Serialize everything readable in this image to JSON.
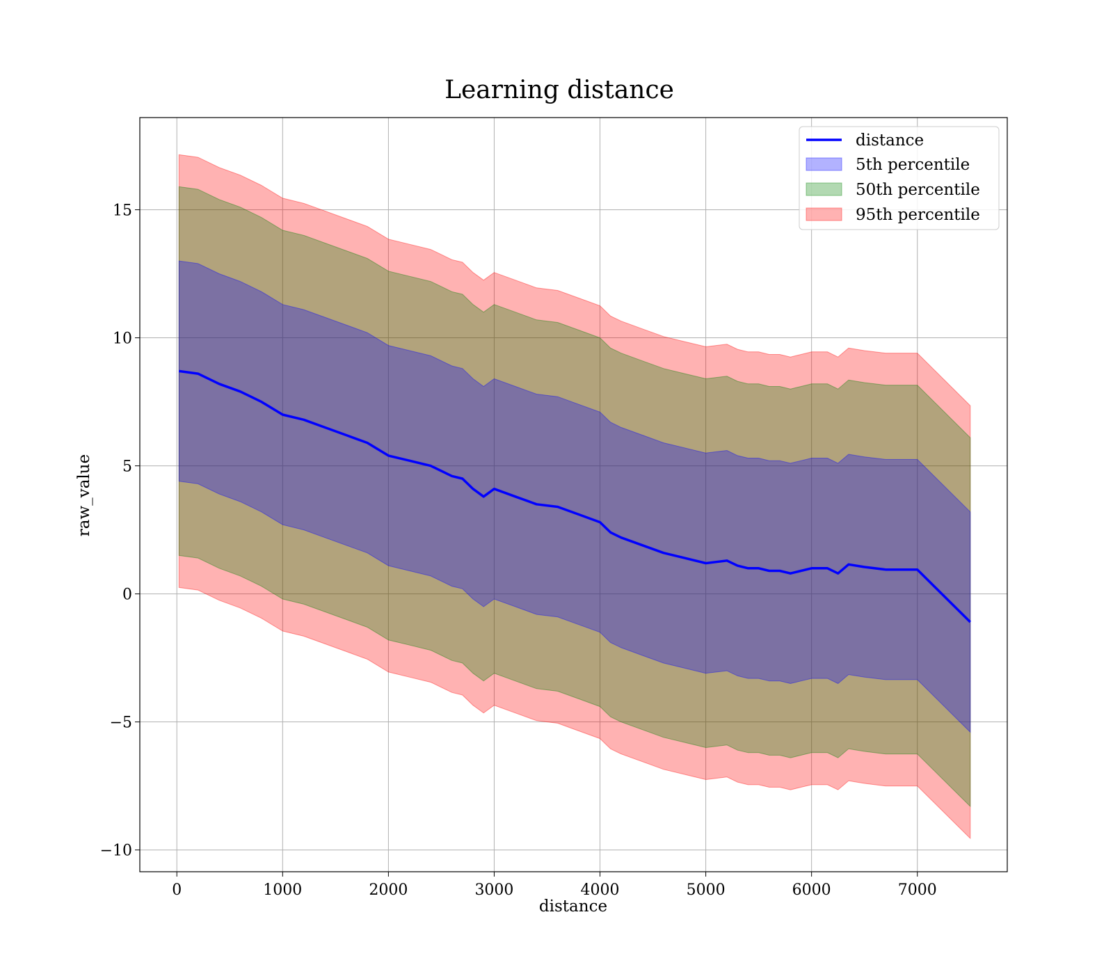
{
  "chart_data": {
    "type": "area",
    "title": "Learning distance",
    "xlabel": "distance",
    "ylabel": "raw_value",
    "xlim": [
      -350,
      7850
    ],
    "ylim": [
      -10.85,
      18.6
    ],
    "xticks": [
      0,
      1000,
      2000,
      3000,
      4000,
      5000,
      6000,
      7000
    ],
    "yticks": [
      -10,
      -5,
      0,
      5,
      10,
      15
    ],
    "ytick_labels": [
      "−10",
      "−5",
      "0",
      "5",
      "10",
      "15"
    ],
    "grid": true,
    "legend_position": "top-right",
    "x": [
      20,
      200,
      400,
      600,
      800,
      1000,
      1200,
      1400,
      1600,
      1800,
      2000,
      2200,
      2400,
      2600,
      2700,
      2800,
      2900,
      3000,
      3200,
      3400,
      3600,
      3800,
      4000,
      4100,
      4200,
      4400,
      4600,
      4800,
      5000,
      5200,
      5300,
      5400,
      5500,
      5600,
      5700,
      5800,
      5900,
      6000,
      6100,
      6150,
      6250,
      6350,
      6500,
      6700,
      7000,
      7500
    ],
    "series": [
      {
        "name": "distance",
        "kind": "line",
        "color": "#0000ff",
        "values": [
          8.7,
          8.6,
          8.2,
          7.9,
          7.5,
          7.0,
          6.8,
          6.5,
          6.2,
          5.9,
          5.4,
          5.2,
          5.0,
          4.6,
          4.5,
          4.1,
          3.8,
          4.1,
          3.8,
          3.5,
          3.4,
          3.1,
          2.8,
          2.4,
          2.2,
          1.9,
          1.6,
          1.4,
          1.2,
          1.3,
          1.1,
          1.0,
          1.0,
          0.9,
          0.9,
          0.8,
          0.9,
          1.0,
          1.0,
          1.0,
          0.8,
          1.15,
          1.05,
          0.95,
          0.95,
          -1.1
        ]
      },
      {
        "name": "5th percentile",
        "kind": "band",
        "color": "#0000ff",
        "half_width": 4.3
      },
      {
        "name": "50th percentile",
        "kind": "band",
        "color": "#008000",
        "half_width": 7.2
      },
      {
        "name": "95th percentile",
        "kind": "band",
        "color": "#ff0000",
        "half_width": 8.45
      }
    ]
  }
}
